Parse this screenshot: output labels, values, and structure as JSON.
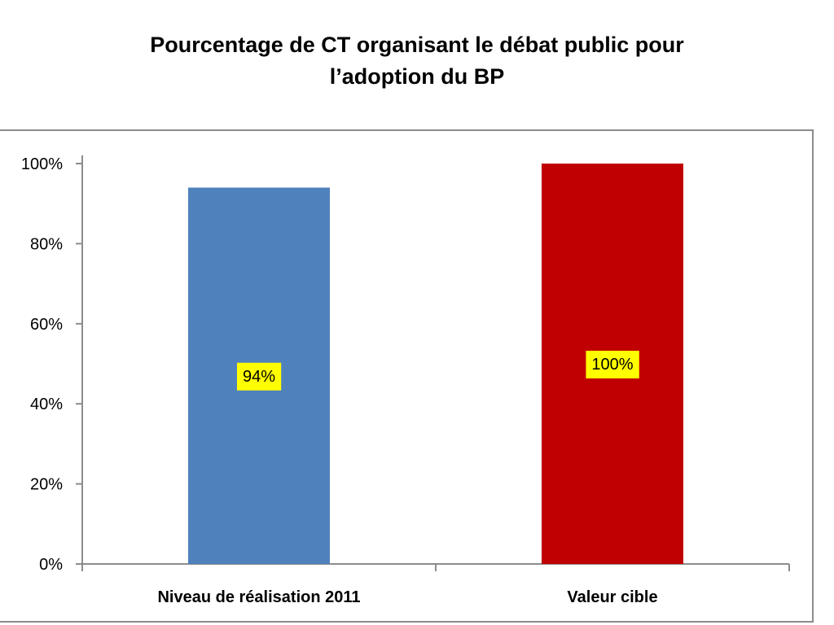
{
  "chart_data": {
    "type": "bar",
    "title_lines": [
      "Pourcentage de CT organisant le débat public pour",
      "l’adoption du BP"
    ],
    "categories": [
      "Niveau de réalisation 2011",
      "Valeur cible"
    ],
    "values": [
      94,
      100
    ],
    "data_labels": [
      "94%",
      "100%"
    ],
    "bar_colors": [
      "#4f81bd",
      "#c00000"
    ],
    "data_label_background": "#ffff00",
    "y_ticks": [
      "0%",
      "20%",
      "40%",
      "60%",
      "80%",
      "100%"
    ],
    "ylim": [
      0,
      100
    ],
    "xlabel": "",
    "ylabel": "",
    "grid": false,
    "legend": "none"
  }
}
